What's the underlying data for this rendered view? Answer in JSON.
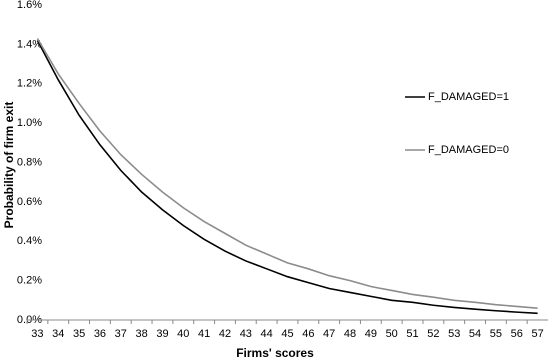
{
  "chart_data": {
    "type": "line",
    "xlabel": "Firms' scores",
    "ylabel": "Probability of firm exit",
    "categories": [
      "33",
      "34",
      "35",
      "36",
      "37",
      "38",
      "39",
      "40",
      "41",
      "42",
      "43",
      "44",
      "45",
      "46",
      "47",
      "48",
      "49",
      "50",
      "51",
      "52",
      "53",
      "54",
      "55",
      "56",
      "57"
    ],
    "series": [
      {
        "name": "F_DAMAGED=1",
        "color": "#000000",
        "values": [
          1.42,
          1.22,
          1.04,
          0.89,
          0.76,
          0.65,
          0.56,
          0.48,
          0.41,
          0.35,
          0.3,
          0.26,
          0.22,
          0.19,
          0.16,
          0.14,
          0.12,
          0.1,
          0.09,
          0.075,
          0.064,
          0.055,
          0.047,
          0.04,
          0.034
        ]
      },
      {
        "name": "F_DAMAGED=0",
        "color": "#8c8c8c",
        "values": [
          1.43,
          1.25,
          1.1,
          0.96,
          0.84,
          0.74,
          0.65,
          0.57,
          0.5,
          0.44,
          0.38,
          0.335,
          0.29,
          0.26,
          0.225,
          0.2,
          0.17,
          0.15,
          0.13,
          0.116,
          0.1,
          0.09,
          0.078,
          0.069,
          0.06
        ]
      }
    ],
    "ylim": [
      0,
      1.6
    ],
    "yticks": [
      {
        "value": 0,
        "label": "0.0%"
      },
      {
        "value": 0.2,
        "label": "0.2%"
      },
      {
        "value": 0.4,
        "label": "0.4%"
      },
      {
        "value": 0.6,
        "label": "0.6%"
      },
      {
        "value": 0.8,
        "label": "0.8%"
      },
      {
        "value": 1.0,
        "label": "1.0%"
      },
      {
        "value": 1.2,
        "label": "1.2%"
      },
      {
        "value": 1.4,
        "label": "1.4%"
      },
      {
        "value": 1.6,
        "label": "1.6%"
      }
    ],
    "grid": false
  }
}
